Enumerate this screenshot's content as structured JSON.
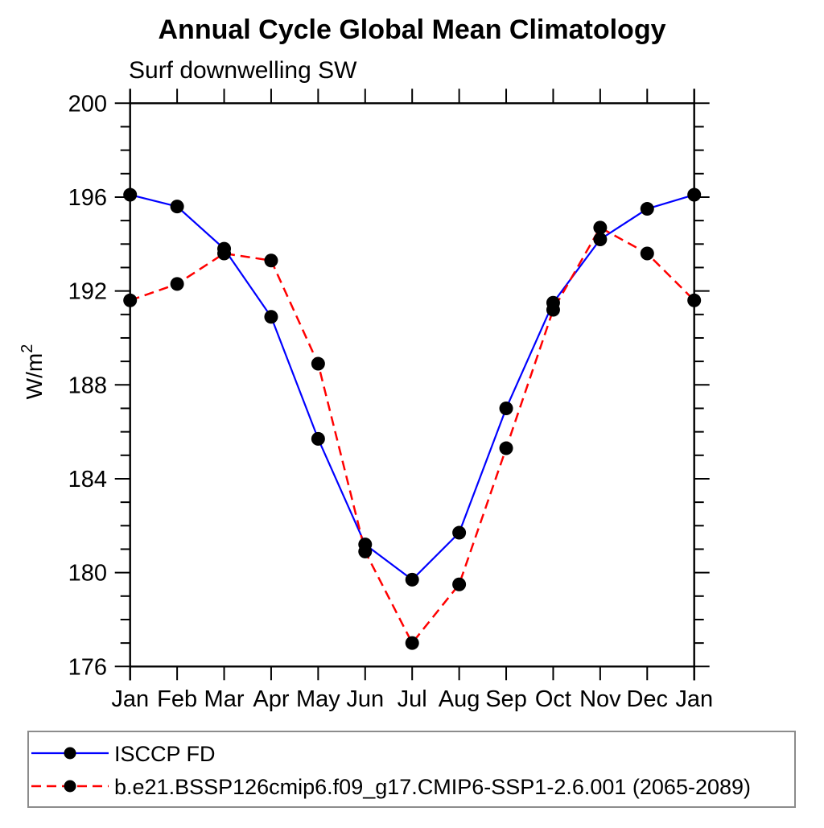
{
  "chart_data": {
    "type": "line",
    "title": "Annual Cycle Global Mean Climatology",
    "subtitle": "Surf downwelling SW",
    "ylabel": "W/m²",
    "ylabel_base": "W/m",
    "ylabel_exponent": "2",
    "categories": [
      "Jan",
      "Feb",
      "Mar",
      "Apr",
      "May",
      "Jun",
      "Jul",
      "Aug",
      "Sep",
      "Oct",
      "Nov",
      "Dec",
      "Jan"
    ],
    "series": [
      {
        "name": "ISCCP FD",
        "color": "#0000ff",
        "line_style": "solid",
        "marker": "filled-circle",
        "marker_color": "#000000",
        "values": [
          196.1,
          195.6,
          193.8,
          190.9,
          185.7,
          181.2,
          179.7,
          181.7,
          187.0,
          191.5,
          194.2,
          195.5,
          196.1
        ]
      },
      {
        "name": "b.e21.BSSP126cmip6.f09_g17.CMIP6-SSP1-2.6.001 (2065-2089)",
        "color": "#ff0000",
        "line_style": "dashed",
        "marker": "filled-circle",
        "marker_color": "#000000",
        "values": [
          191.6,
          192.3,
          193.6,
          193.3,
          188.9,
          180.9,
          177.0,
          179.5,
          185.3,
          191.2,
          194.7,
          193.6,
          191.6
        ]
      }
    ],
    "ylim": [
      176,
      200
    ],
    "yticks_major": [
      176,
      180,
      184,
      188,
      192,
      196,
      200
    ],
    "ytick_minor_step": 1,
    "grid": "off",
    "legend_position": "bottom-left-box",
    "axis_color": "#000000",
    "background_color": "#ffffff"
  }
}
